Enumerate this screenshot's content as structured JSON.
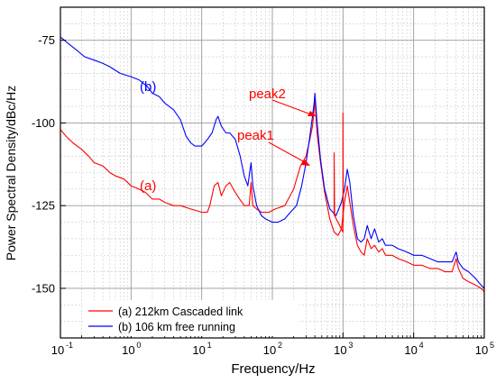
{
  "chart_data": {
    "type": "line",
    "xscale": "log",
    "xlim": [
      0.1,
      100000
    ],
    "ylim": [
      -165,
      -65
    ],
    "grid": true,
    "xlabel": "Frequency/Hz",
    "ylabel": "Power Spectral Density/dBc/Hz",
    "yticks": [
      -75,
      -100,
      -125,
      -150
    ],
    "xticks": [
      {
        "base": "10",
        "exp": "-1"
      },
      {
        "base": "10",
        "exp": "0"
      },
      {
        "base": "10",
        "exp": "1"
      },
      {
        "base": "10",
        "exp": "2"
      },
      {
        "base": "10",
        "exp": "3"
      },
      {
        "base": "10",
        "exp": "4"
      },
      {
        "base": "10",
        "exp": "5"
      }
    ],
    "annotations": {
      "peak1": "peak1",
      "peak2": "peak2",
      "label_a": "(a)",
      "label_b": "(b)"
    },
    "legend": {
      "placement": "bottom-left",
      "entries": [
        "(a) 212km Cascaded link",
        "(b) 106 km free running"
      ]
    },
    "series": [
      {
        "name": "(a) 212km Cascaded link",
        "color": "#ff0000",
        "points": [
          [
            0.1,
            -102
          ],
          [
            0.12,
            -104
          ],
          [
            0.15,
            -106
          ],
          [
            0.2,
            -108
          ],
          [
            0.25,
            -110
          ],
          [
            0.3,
            -112
          ],
          [
            0.4,
            -113
          ],
          [
            0.5,
            -115
          ],
          [
            0.6,
            -116
          ],
          [
            0.8,
            -117
          ],
          [
            1,
            -119
          ],
          [
            1.3,
            -120
          ],
          [
            1.6,
            -121
          ],
          [
            2,
            -123
          ],
          [
            2.5,
            -123
          ],
          [
            3,
            -124
          ],
          [
            4,
            -125
          ],
          [
            5,
            -125
          ],
          [
            7,
            -126
          ],
          [
            10,
            -127
          ],
          [
            12,
            -127
          ],
          [
            13,
            -125
          ],
          [
            15,
            -119
          ],
          [
            17,
            -118
          ],
          [
            19,
            -122
          ],
          [
            22,
            -119
          ],
          [
            25,
            -118
          ],
          [
            28,
            -120
          ],
          [
            32,
            -122
          ],
          [
            40,
            -125
          ],
          [
            47,
            -125
          ],
          [
            50,
            -118
          ],
          [
            53,
            -125
          ],
          [
            60,
            -126
          ],
          [
            70,
            -127
          ],
          [
            90,
            -127
          ],
          [
            110,
            -126
          ],
          [
            150,
            -125
          ],
          [
            200,
            -120
          ],
          [
            250,
            -113
          ],
          [
            300,
            -110
          ],
          [
            340,
            -105
          ],
          [
            370,
            -101
          ],
          [
            390,
            -96
          ],
          [
            400,
            -92
          ],
          [
            410,
            -96
          ],
          [
            430,
            -103
          ],
          [
            480,
            -112
          ],
          [
            550,
            -121
          ],
          [
            650,
            -129
          ],
          [
            750,
            -133
          ],
          [
            850,
            -134
          ],
          [
            950,
            -132
          ],
          [
            1050,
            -124
          ],
          [
            1150,
            -119
          ],
          [
            1250,
            -124
          ],
          [
            1400,
            -131
          ],
          [
            1600,
            -137
          ],
          [
            1800,
            -139
          ],
          [
            2000,
            -140
          ],
          [
            2200,
            -135
          ],
          [
            2500,
            -138
          ],
          [
            2800,
            -137
          ],
          [
            3200,
            -139
          ],
          [
            3600,
            -138
          ],
          [
            4000,
            -140
          ],
          [
            5000,
            -140
          ],
          [
            6000,
            -141
          ],
          [
            8000,
            -142
          ],
          [
            10000,
            -143
          ],
          [
            13000,
            -143
          ],
          [
            17000,
            -144
          ],
          [
            22000,
            -144
          ],
          [
            28000,
            -145
          ],
          [
            35000,
            -145
          ],
          [
            40000,
            -141
          ],
          [
            43000,
            -144
          ],
          [
            50000,
            -147
          ],
          [
            60000,
            -148
          ],
          [
            75000,
            -149
          ],
          [
            90000,
            -150
          ],
          [
            100000,
            -151
          ]
        ]
      },
      {
        "name": "(b) 106 km free running",
        "color": "#0000ff",
        "points": [
          [
            0.1,
            -74
          ],
          [
            0.13,
            -76
          ],
          [
            0.17,
            -78
          ],
          [
            0.22,
            -80
          ],
          [
            0.3,
            -81
          ],
          [
            0.4,
            -82
          ],
          [
            0.5,
            -83
          ],
          [
            0.7,
            -85
          ],
          [
            1,
            -86
          ],
          [
            1.3,
            -87
          ],
          [
            1.7,
            -89
          ],
          [
            2,
            -91
          ],
          [
            2.5,
            -92
          ],
          [
            3,
            -94
          ],
          [
            4,
            -96
          ],
          [
            5,
            -99
          ],
          [
            6,
            -104
          ],
          [
            7,
            -106
          ],
          [
            8,
            -107
          ],
          [
            9,
            -107
          ],
          [
            10,
            -107
          ],
          [
            11,
            -106
          ],
          [
            12,
            -105
          ],
          [
            14,
            -103
          ],
          [
            16,
            -99
          ],
          [
            17,
            -98
          ],
          [
            19,
            -101
          ],
          [
            22,
            -103
          ],
          [
            25,
            -103
          ],
          [
            30,
            -105
          ],
          [
            35,
            -110
          ],
          [
            40,
            -116
          ],
          [
            45,
            -119
          ],
          [
            50,
            -112
          ],
          [
            53,
            -119
          ],
          [
            60,
            -125
          ],
          [
            70,
            -128
          ],
          [
            80,
            -129
          ],
          [
            100,
            -130
          ],
          [
            120,
            -130
          ],
          [
            150,
            -129
          ],
          [
            180,
            -127
          ],
          [
            220,
            -125
          ],
          [
            260,
            -119
          ],
          [
            300,
            -112
          ],
          [
            340,
            -104
          ],
          [
            370,
            -98
          ],
          [
            390,
            -94
          ],
          [
            400,
            -91
          ],
          [
            410,
            -94
          ],
          [
            430,
            -100
          ],
          [
            480,
            -111
          ],
          [
            550,
            -120
          ],
          [
            650,
            -126
          ],
          [
            800,
            -128
          ],
          [
            950,
            -124
          ],
          [
            1050,
            -120
          ],
          [
            1150,
            -114
          ],
          [
            1250,
            -118
          ],
          [
            1400,
            -128
          ],
          [
            1600,
            -135
          ],
          [
            1800,
            -136
          ],
          [
            2000,
            -135
          ],
          [
            2200,
            -131
          ],
          [
            2500,
            -135
          ],
          [
            2800,
            -132
          ],
          [
            3200,
            -136
          ],
          [
            3600,
            -135
          ],
          [
            4000,
            -137
          ],
          [
            5000,
            -137
          ],
          [
            6000,
            -138
          ],
          [
            8000,
            -139
          ],
          [
            10000,
            -140
          ],
          [
            13000,
            -140
          ],
          [
            17000,
            -141
          ],
          [
            22000,
            -142
          ],
          [
            28000,
            -142
          ],
          [
            35000,
            -142
          ],
          [
            40000,
            -139
          ],
          [
            43000,
            -142
          ],
          [
            50000,
            -144
          ],
          [
            60000,
            -145
          ],
          [
            75000,
            -147
          ],
          [
            90000,
            -149
          ],
          [
            100000,
            -150
          ]
        ]
      },
      {
        "name": "",
        "color": "#ff0000",
        "points": [
          [
            750,
            -128
          ],
          [
            750,
            -109
          ],
          [
            760,
            -128
          ],
          [
            1000,
            -133
          ],
          [
            1000,
            -97
          ],
          [
            1010,
            -130
          ]
        ]
      }
    ]
  }
}
